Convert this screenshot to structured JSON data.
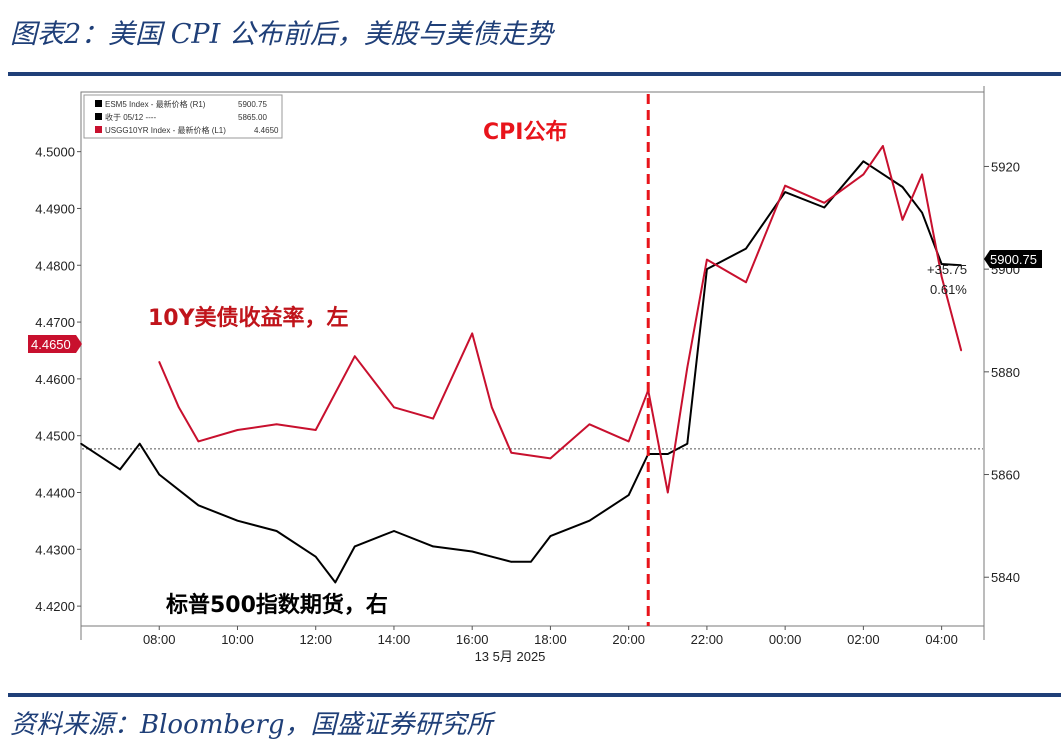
{
  "header": {
    "title": "图表2：美国 CPI 公布前后，美股与美债走势"
  },
  "footer": {
    "source": "资料来源：Bloomberg，国盛证券研究所"
  },
  "chart_data": {
    "type": "line",
    "x_tick_labels": [
      "08:00",
      "10:00",
      "12:00",
      "14:00",
      "16:00",
      "18:00",
      "20:00",
      "22:00",
      "00:00",
      "02:00",
      "04:00"
    ],
    "x_axis_date": "13 5月 2025",
    "left_axis": {
      "ticks": [
        "4.4200",
        "4.4300",
        "4.4400",
        "4.4500",
        "4.4600",
        "4.4700",
        "4.4800",
        "4.4900",
        "4.5000"
      ],
      "ylim": [
        4.4165,
        4.5105
      ]
    },
    "right_axis": {
      "ticks": [
        "5840",
        "5860",
        "5880",
        "5900",
        "5920"
      ],
      "ylim": [
        5830.5,
        5934.5
      ]
    },
    "event_label": "CPI公布",
    "event_time": "20:30",
    "annotations": {
      "yield": "10Y美债收益率，左",
      "futures": "标普500指数期货，右"
    },
    "last_value_yield": "4.4650",
    "last_value_futures": "5900.75",
    "change": "+35.75",
    "change_pct": "0.61%",
    "legend": [
      {
        "label": "ESM5 Index - 最新价格 (R1)",
        "value": "5900.75",
        "color": "#000000"
      },
      {
        "label": "收于 05/12 ----",
        "value": "5865.00",
        "color": "#000000"
      },
      {
        "label": "USGG10YR Index - 最新价格 (L1)",
        "value": "4.4650",
        "color": "#c8102e"
      }
    ],
    "reference_line": {
      "value": 5865.0,
      "axis": "right"
    },
    "series": [
      {
        "name": "ESM5 Index",
        "axis": "right",
        "color": "#000000",
        "x": [
          "06:00",
          "07:00",
          "07:30",
          "08:00",
          "09:00",
          "10:00",
          "11:00",
          "12:00",
          "12:30",
          "13:00",
          "14:00",
          "15:00",
          "16:00",
          "16:30",
          "17:00",
          "17:30",
          "18:00",
          "19:00",
          "20:00",
          "20:30",
          "21:00",
          "21:30",
          "22:00",
          "23:00",
          "00:00",
          "01:00",
          "02:00",
          "03:00",
          "03:30",
          "04:00",
          "04:30"
        ],
        "values": [
          5866,
          5861,
          5866,
          5860,
          5854,
          5851,
          5849,
          5844,
          5839,
          5846,
          5849,
          5846,
          5845,
          5844,
          5843,
          5843,
          5848,
          5851,
          5856,
          5864,
          5864,
          5866,
          5900,
          5904,
          5915,
          5912,
          5921,
          5916,
          5911,
          5901,
          5900.75
        ]
      },
      {
        "name": "USGG10YR Index",
        "axis": "left",
        "color": "#c8102e",
        "x": [
          "08:00",
          "08:30",
          "09:00",
          "10:00",
          "11:00",
          "12:00",
          "13:00",
          "14:00",
          "15:00",
          "16:00",
          "16:30",
          "17:00",
          "18:00",
          "19:00",
          "20:00",
          "20:30",
          "21:00",
          "21:30",
          "22:00",
          "23:00",
          "00:00",
          "01:00",
          "02:00",
          "02:30",
          "03:00",
          "03:30",
          "04:00",
          "04:30"
        ],
        "values": [
          4.463,
          4.455,
          4.449,
          4.451,
          4.452,
          4.451,
          4.464,
          4.455,
          4.453,
          4.468,
          4.455,
          4.447,
          4.446,
          4.452,
          4.449,
          4.458,
          4.44,
          4.462,
          4.481,
          4.477,
          4.494,
          4.491,
          4.496,
          4.501,
          4.488,
          4.496,
          4.478,
          4.465
        ]
      }
    ]
  }
}
